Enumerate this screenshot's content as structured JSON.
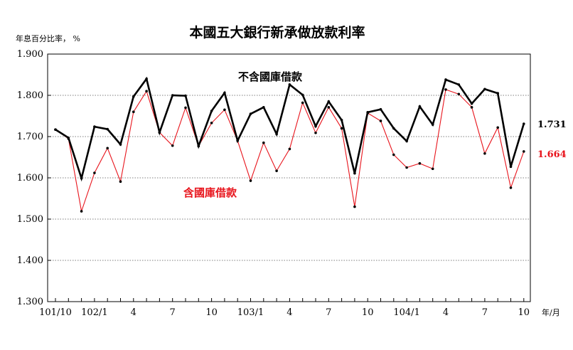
{
  "chart_data": {
    "type": "line",
    "title": "本國五大銀行新承做放款利率",
    "ylabel": "年息百分比率， %",
    "xlabel": "年/月",
    "ylim": [
      1.3,
      1.9
    ],
    "yticks": [
      "1.300",
      "1.400",
      "1.500",
      "1.600",
      "1.700",
      "1.800",
      "1.900"
    ],
    "grid": "horizontal dotted",
    "x_tick_labels": [
      {
        "index": 0,
        "label": "101/10"
      },
      {
        "index": 3,
        "label": "102/1"
      },
      {
        "index": 6,
        "label": "4"
      },
      {
        "index": 9,
        "label": "7"
      },
      {
        "index": 12,
        "label": "10"
      },
      {
        "index": 15,
        "label": "103/1"
      },
      {
        "index": 18,
        "label": "4"
      },
      {
        "index": 21,
        "label": "7"
      },
      {
        "index": 24,
        "label": "10"
      },
      {
        "index": 27,
        "label": "104/1"
      },
      {
        "index": 30,
        "label": "4"
      },
      {
        "index": 33,
        "label": "7"
      },
      {
        "index": 36,
        "label": "10"
      }
    ],
    "series": [
      {
        "name": "不含國庫借款",
        "color": "#000000",
        "end_label": "1.731",
        "values": [
          1.717,
          1.697,
          1.599,
          1.724,
          1.718,
          1.681,
          1.797,
          1.84,
          1.71,
          1.8,
          1.799,
          1.677,
          1.762,
          1.806,
          1.69,
          1.755,
          1.771,
          1.706,
          1.826,
          1.801,
          1.725,
          1.785,
          1.74,
          1.611,
          1.759,
          1.766,
          1.72,
          1.689,
          1.773,
          1.729,
          1.838,
          1.826,
          1.78,
          1.815,
          1.805,
          1.627,
          1.731
        ]
      },
      {
        "name": "含國庫借款",
        "color": "#e8141c",
        "end_label": "1.664",
        "values": [
          1.717,
          1.695,
          1.519,
          1.612,
          1.672,
          1.591,
          1.76,
          1.81,
          1.71,
          1.678,
          1.77,
          1.677,
          1.733,
          1.765,
          1.69,
          1.593,
          1.685,
          1.617,
          1.67,
          1.782,
          1.709,
          1.771,
          1.72,
          1.53,
          1.757,
          1.738,
          1.656,
          1.625,
          1.635,
          1.622,
          1.814,
          1.803,
          1.771,
          1.659,
          1.722,
          1.576,
          1.664
        ]
      }
    ]
  }
}
